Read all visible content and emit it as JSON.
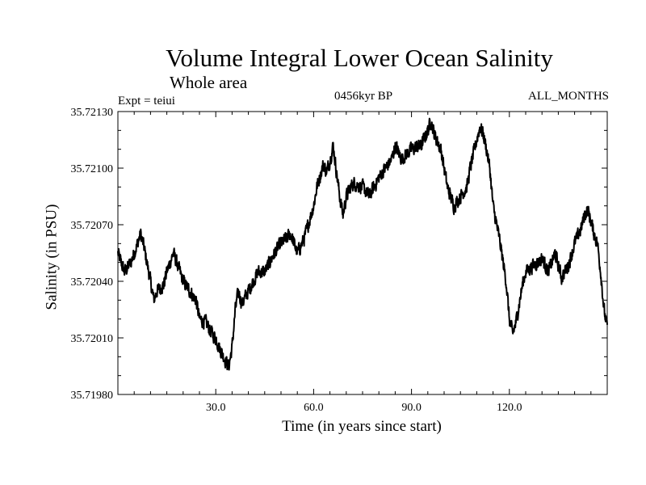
{
  "chart_data": {
    "type": "line",
    "title": "Volume Integral Lower Ocean Salinity",
    "subtitle": "Whole area",
    "experiment": "Expt = teiui",
    "period": "0456kyr BP",
    "months": "ALL_MONTHS",
    "xlabel": "Time (in years since start)",
    "ylabel": "Salinity (in PSU)",
    "xlim": [
      0,
      150
    ],
    "ylim": [
      35.7198,
      35.7213
    ],
    "x_ticks": [
      30,
      60,
      90,
      120
    ],
    "x_tick_labels": [
      "30.0",
      "60.0",
      "90.0",
      "120.0"
    ],
    "y_ticks": [
      35.7198,
      35.7201,
      35.7204,
      35.7207,
      35.721,
      35.7213
    ],
    "y_tick_labels": [
      "35.71980",
      "35.72010",
      "35.72040",
      "35.72070",
      "35.72100",
      "35.72130"
    ],
    "grid": false,
    "series": [
      {
        "name": "salinity",
        "color": "#000000",
        "x": [
          0,
          2,
          4,
          6,
          7,
          8,
          10,
          11,
          12,
          14,
          15,
          17,
          18,
          20,
          22,
          24,
          25,
          27,
          29,
          30,
          31,
          33,
          34,
          35,
          36,
          37,
          38,
          40,
          43,
          45,
          48,
          50,
          53,
          55,
          57,
          60,
          61,
          63,
          64,
          65,
          66,
          67,
          68,
          69,
          70,
          72,
          75,
          77,
          80,
          82,
          84,
          85,
          87,
          90,
          93,
          95,
          96,
          97,
          99,
          100,
          101,
          103,
          105,
          107,
          108,
          110,
          111,
          112,
          113,
          114,
          115,
          117,
          119,
          120,
          121,
          122,
          123,
          124,
          125,
          127,
          130,
          132,
          134,
          136,
          138,
          140,
          142,
          143,
          144,
          145,
          146,
          147,
          148,
          149,
          150
        ],
        "values": [
          35.72055,
          35.72045,
          35.7205,
          35.7206,
          35.72065,
          35.72058,
          35.7204,
          35.7203,
          35.72035,
          35.72038,
          35.72045,
          35.72055,
          35.7205,
          35.7204,
          35.72035,
          35.7203,
          35.7202,
          35.72018,
          35.72012,
          35.7201,
          35.72005,
          35.71998,
          35.71995,
          35.72005,
          35.72025,
          35.72035,
          35.72028,
          35.72035,
          35.72045,
          35.72045,
          35.72055,
          35.7206,
          35.72065,
          35.72055,
          35.72062,
          35.7208,
          35.7209,
          35.72102,
          35.72098,
          35.72104,
          35.72112,
          35.72098,
          35.72085,
          35.72075,
          35.72085,
          35.72092,
          35.7209,
          35.72085,
          35.72095,
          35.721,
          35.72105,
          35.72112,
          35.72105,
          35.7211,
          35.72112,
          35.7212,
          35.72125,
          35.72118,
          35.7211,
          35.721,
          35.7209,
          35.7208,
          35.72085,
          35.7209,
          35.721,
          35.72115,
          35.72122,
          35.72118,
          35.7211,
          35.721,
          35.7208,
          35.72062,
          35.7204,
          35.7202,
          35.72012,
          35.72018,
          35.72028,
          35.72038,
          35.72045,
          35.72048,
          35.72052,
          35.72045,
          35.72055,
          35.72042,
          35.72048,
          35.7206,
          35.72068,
          35.72075,
          35.72078,
          35.72072,
          35.72065,
          35.7206,
          35.72045,
          35.72025,
          35.72015
        ]
      }
    ]
  }
}
